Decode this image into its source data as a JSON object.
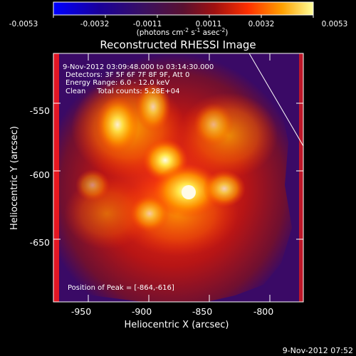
{
  "colorbar": {
    "ticks": [
      "-0.0053",
      "-0.0032",
      "-0.0011",
      "0.0011",
      "0.0032",
      "0.0053"
    ],
    "unit_main": "(photons cm",
    "unit_exp1": "-2",
    "unit_mid1": " s",
    "unit_exp2": "-1",
    "unit_mid2": " asec",
    "unit_exp3": "-2",
    "unit_end": ")"
  },
  "title": "Reconstructed RHESSI Image",
  "annotations": {
    "time_range": "9-Nov-2012 03:09:48.000 to 03:14:30.000",
    "detectors": "Detectors: 3F 5F 6F 7F 8F 9F, Att 0",
    "energy": "Energy Range: 6.0 - 12.0 keV",
    "clean": "Clean     Total counts: 5.28E+04",
    "peak": "Position of Peak = [-864,-616]"
  },
  "axes": {
    "xlabel": "Heliocentric X (arcsec)",
    "ylabel": "Heliocentric Y (arcsec)",
    "xticks": [
      "-950",
      "-900",
      "-850",
      "-800"
    ],
    "yticks": [
      "-550",
      "-600",
      "-650"
    ]
  },
  "footer_timestamp": "9-Nov-2012 07:52",
  "colors": {
    "background": "#000000",
    "map_dark": "#3a0a66",
    "map_mid": "#c01818",
    "map_bright": "#ffe640",
    "map_peak": "#fffae0",
    "frame": "#ffffff"
  }
}
